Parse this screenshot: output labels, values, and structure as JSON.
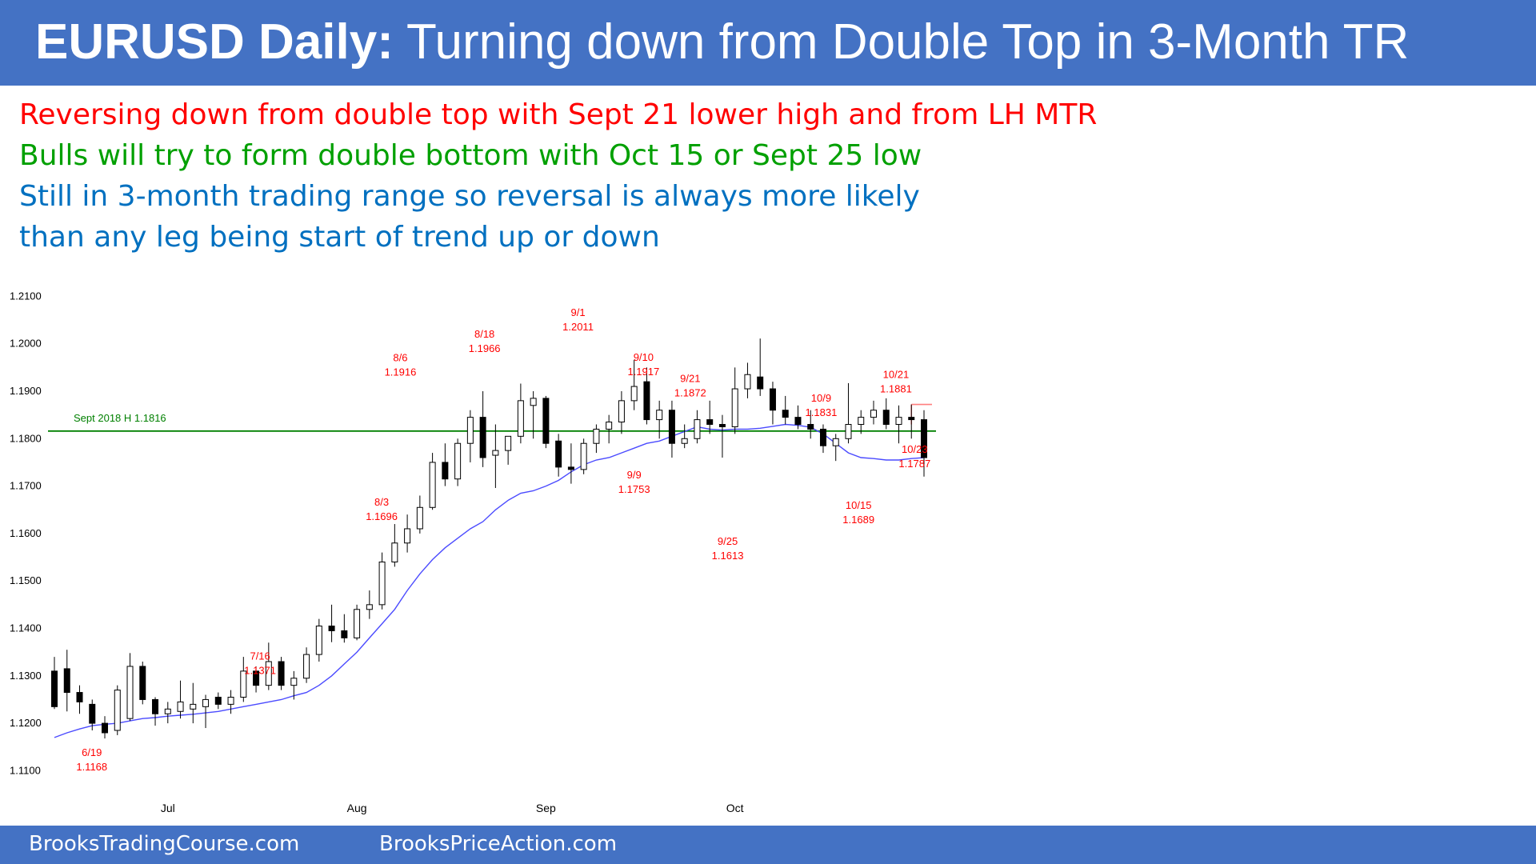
{
  "header": {
    "title_bold": "EURUSD Daily:",
    "title_rest": "Turning down from Double Top in 3-Month TR"
  },
  "notes": [
    {
      "text": "Reversing down from double top with Sept 21 lower high and from LH MTR",
      "color": "#ff0000"
    },
    {
      "text": "Bulls will try to form double bottom with Oct 15 or Sept 25 low",
      "color": "#00a000"
    },
    {
      "text": "Still in 3-month trading range so reversal is always more likely",
      "color": "#0070c0"
    },
    {
      "text": "than any leg being start of trend up or down",
      "color": "#0070c0"
    }
  ],
  "footer": {
    "left": "BrooksTradingCourse.com",
    "right": "BrooksPriceAction.com"
  },
  "colors": {
    "banner": "#4472c4",
    "annotation": "#ff0000",
    "support_line": "#008000",
    "resistance_line": "#ff7f7f",
    "moving_average": "#4b4bff",
    "candle": "#000000"
  },
  "chart_data": {
    "type": "candlestick",
    "instrument": "EURUSD",
    "timeframe": "Daily",
    "ylim": [
      1.105,
      1.215
    ],
    "y_ticks": [
      "1.2100",
      "1.2000",
      "1.1900",
      "1.1800",
      "1.1700",
      "1.1600",
      "1.1500",
      "1.1400",
      "1.1300",
      "1.1200",
      "1.1100"
    ],
    "x_ticks": [
      {
        "label": "Jul",
        "bar": 9
      },
      {
        "label": "Aug",
        "bar": 24
      },
      {
        "label": "Sep",
        "bar": 39
      },
      {
        "label": "Oct",
        "bar": 54
      }
    ],
    "candles": [
      {
        "o": 1.131,
        "h": 1.134,
        "l": 1.123,
        "c": 1.1235
      },
      {
        "o": 1.1315,
        "h": 1.1355,
        "l": 1.1225,
        "c": 1.1265
      },
      {
        "o": 1.1265,
        "h": 1.128,
        "l": 1.122,
        "c": 1.1245
      },
      {
        "o": 1.124,
        "h": 1.125,
        "l": 1.1185,
        "c": 1.12
      },
      {
        "o": 1.12,
        "h": 1.1215,
        "l": 1.1168,
        "c": 1.118
      },
      {
        "o": 1.1185,
        "h": 1.128,
        "l": 1.1175,
        "c": 1.127
      },
      {
        "o": 1.121,
        "h": 1.1348,
        "l": 1.1205,
        "c": 1.132
      },
      {
        "o": 1.132,
        "h": 1.133,
        "l": 1.124,
        "c": 1.125
      },
      {
        "o": 1.125,
        "h": 1.1255,
        "l": 1.1195,
        "c": 1.122
      },
      {
        "o": 1.122,
        "h": 1.1245,
        "l": 1.12,
        "c": 1.123
      },
      {
        "o": 1.1225,
        "h": 1.129,
        "l": 1.121,
        "c": 1.1245
      },
      {
        "o": 1.123,
        "h": 1.1285,
        "l": 1.12,
        "c": 1.124
      },
      {
        "o": 1.1235,
        "h": 1.126,
        "l": 1.119,
        "c": 1.125
      },
      {
        "o": 1.1255,
        "h": 1.1265,
        "l": 1.123,
        "c": 1.124
      },
      {
        "o": 1.124,
        "h": 1.127,
        "l": 1.122,
        "c": 1.1255
      },
      {
        "o": 1.1255,
        "h": 1.134,
        "l": 1.1245,
        "c": 1.131
      },
      {
        "o": 1.131,
        "h": 1.132,
        "l": 1.1265,
        "c": 1.128
      },
      {
        "o": 1.128,
        "h": 1.137,
        "l": 1.127,
        "c": 1.133
      },
      {
        "o": 1.133,
        "h": 1.134,
        "l": 1.127,
        "c": 1.128
      },
      {
        "o": 1.128,
        "h": 1.131,
        "l": 1.125,
        "c": 1.1295
      },
      {
        "o": 1.1295,
        "h": 1.136,
        "l": 1.1285,
        "c": 1.1345
      },
      {
        "o": 1.1345,
        "h": 1.142,
        "l": 1.133,
        "c": 1.1405
      },
      {
        "o": 1.1405,
        "h": 1.145,
        "l": 1.1371,
        "c": 1.1395
      },
      {
        "o": 1.1395,
        "h": 1.143,
        "l": 1.137,
        "c": 1.138
      },
      {
        "o": 1.138,
        "h": 1.145,
        "l": 1.1375,
        "c": 1.144
      },
      {
        "o": 1.144,
        "h": 1.148,
        "l": 1.142,
        "c": 1.145
      },
      {
        "o": 1.145,
        "h": 1.156,
        "l": 1.144,
        "c": 1.154
      },
      {
        "o": 1.154,
        "h": 1.162,
        "l": 1.153,
        "c": 1.158
      },
      {
        "o": 1.158,
        "h": 1.164,
        "l": 1.156,
        "c": 1.161
      },
      {
        "o": 1.161,
        "h": 1.168,
        "l": 1.16,
        "c": 1.1655
      },
      {
        "o": 1.1655,
        "h": 1.177,
        "l": 1.165,
        "c": 1.175
      },
      {
        "o": 1.175,
        "h": 1.179,
        "l": 1.17,
        "c": 1.1715
      },
      {
        "o": 1.1715,
        "h": 1.18,
        "l": 1.17,
        "c": 1.179
      },
      {
        "o": 1.179,
        "h": 1.186,
        "l": 1.175,
        "c": 1.1845
      },
      {
        "o": 1.1845,
        "h": 1.19,
        "l": 1.174,
        "c": 1.176
      },
      {
        "o": 1.1765,
        "h": 1.183,
        "l": 1.1696,
        "c": 1.1775
      },
      {
        "o": 1.1775,
        "h": 1.18,
        "l": 1.1745,
        "c": 1.1805
      },
      {
        "o": 1.1805,
        "h": 1.1916,
        "l": 1.179,
        "c": 1.188
      },
      {
        "o": 1.187,
        "h": 1.19,
        "l": 1.18,
        "c": 1.1885
      },
      {
        "o": 1.1885,
        "h": 1.189,
        "l": 1.178,
        "c": 1.179
      },
      {
        "o": 1.1795,
        "h": 1.181,
        "l": 1.172,
        "c": 1.174
      },
      {
        "o": 1.174,
        "h": 1.179,
        "l": 1.1705,
        "c": 1.1735
      },
      {
        "o": 1.1735,
        "h": 1.18,
        "l": 1.1725,
        "c": 1.179
      },
      {
        "o": 1.179,
        "h": 1.183,
        "l": 1.177,
        "c": 1.182
      },
      {
        "o": 1.182,
        "h": 1.185,
        "l": 1.179,
        "c": 1.1835
      },
      {
        "o": 1.1835,
        "h": 1.19,
        "l": 1.181,
        "c": 1.188
      },
      {
        "o": 1.188,
        "h": 1.1966,
        "l": 1.186,
        "c": 1.191
      },
      {
        "o": 1.192,
        "h": 1.195,
        "l": 1.183,
        "c": 1.184
      },
      {
        "o": 1.184,
        "h": 1.188,
        "l": 1.18,
        "c": 1.186
      },
      {
        "o": 1.186,
        "h": 1.188,
        "l": 1.176,
        "c": 1.179
      },
      {
        "o": 1.179,
        "h": 1.183,
        "l": 1.178,
        "c": 1.18
      },
      {
        "o": 1.18,
        "h": 1.186,
        "l": 1.179,
        "c": 1.184
      },
      {
        "o": 1.184,
        "h": 1.188,
        "l": 1.181,
        "c": 1.183
      },
      {
        "o": 1.183,
        "h": 1.185,
        "l": 1.176,
        "c": 1.1825
      },
      {
        "o": 1.1825,
        "h": 1.195,
        "l": 1.181,
        "c": 1.1905
      },
      {
        "o": 1.1905,
        "h": 1.196,
        "l": 1.1885,
        "c": 1.1935
      },
      {
        "o": 1.193,
        "h": 1.2011,
        "l": 1.189,
        "c": 1.1905
      },
      {
        "o": 1.1905,
        "h": 1.192,
        "l": 1.183,
        "c": 1.186
      },
      {
        "o": 1.186,
        "h": 1.189,
        "l": 1.183,
        "c": 1.1845
      },
      {
        "o": 1.1845,
        "h": 1.187,
        "l": 1.182,
        "c": 1.183
      },
      {
        "o": 1.183,
        "h": 1.186,
        "l": 1.18,
        "c": 1.182
      },
      {
        "o": 1.182,
        "h": 1.183,
        "l": 1.177,
        "c": 1.1785
      },
      {
        "o": 1.1785,
        "h": 1.181,
        "l": 1.1753,
        "c": 1.18
      },
      {
        "o": 1.18,
        "h": 1.1917,
        "l": 1.179,
        "c": 1.183
      },
      {
        "o": 1.183,
        "h": 1.186,
        "l": 1.181,
        "c": 1.1845
      },
      {
        "o": 1.1845,
        "h": 1.188,
        "l": 1.183,
        "c": 1.186
      },
      {
        "o": 1.186,
        "h": 1.1885,
        "l": 1.182,
        "c": 1.183
      },
      {
        "o": 1.183,
        "h": 1.187,
        "l": 1.179,
        "c": 1.1845
      },
      {
        "o": 1.1845,
        "h": 1.1872,
        "l": 1.18,
        "c": 1.184
      },
      {
        "o": 1.184,
        "h": 1.186,
        "l": 1.172,
        "c": 1.176
      }
    ],
    "moving_average": [
      1.117,
      1.118,
      1.1188,
      1.1195,
      1.1198,
      1.12,
      1.1205,
      1.121,
      1.1212,
      1.1215,
      1.1217,
      1.1219,
      1.1222,
      1.1225,
      1.123,
      1.1235,
      1.124,
      1.1245,
      1.125,
      1.1258,
      1.1265,
      1.128,
      1.13,
      1.1325,
      1.135,
      1.138,
      1.141,
      1.144,
      1.148,
      1.1515,
      1.1545,
      1.157,
      1.159,
      1.161,
      1.1625,
      1.165,
      1.167,
      1.1685,
      1.169,
      1.17,
      1.1712,
      1.173,
      1.1745,
      1.1755,
      1.176,
      1.177,
      1.178,
      1.179,
      1.1795,
      1.1805,
      1.1815,
      1.1825,
      1.182,
      1.1818,
      1.182,
      1.182,
      1.1822,
      1.1826,
      1.183,
      1.1828,
      1.1824,
      1.181,
      1.179,
      1.177,
      1.176,
      1.1758,
      1.1755,
      1.1755,
      1.1758,
      1.176
    ],
    "support_line": {
      "label": "Sept 2018 H 1.1816",
      "value": 1.1816
    },
    "resistance_line": {
      "value": 1.1872
    },
    "annotations": [
      {
        "date": "6/19",
        "price": "1.1168",
        "bar": 4,
        "value": 1.1168,
        "pos": "below"
      },
      {
        "date": "7/16",
        "price": "1.1371",
        "bar": 22,
        "value": 1.1371,
        "pos": "below"
      },
      {
        "date": "8/3",
        "price": "1.1696",
        "bar": 35,
        "value": 1.1696,
        "pos": "below"
      },
      {
        "date": "8/6",
        "price": "1.1916",
        "bar": 37,
        "value": 1.1916,
        "pos": "above"
      },
      {
        "date": "8/18",
        "price": "1.1966",
        "bar": 46,
        "value": 1.1966,
        "pos": "above"
      },
      {
        "date": "9/1",
        "price": "1.2011",
        "bar": 56,
        "value": 1.2011,
        "pos": "above"
      },
      {
        "date": "9/9",
        "price": "1.1753",
        "bar": 62,
        "value": 1.1753,
        "pos": "below"
      },
      {
        "date": "9/10",
        "price": "1.1917",
        "bar": 63,
        "value": 1.1917,
        "pos": "above"
      },
      {
        "date": "9/21",
        "price": "1.1872",
        "bar": 68,
        "value": 1.1872,
        "pos": "above"
      },
      {
        "date": "9/25",
        "price": "1.1613",
        "bar": 72,
        "value": 1.1613,
        "pos": "below"
      },
      {
        "date": "10/9",
        "price": "1.1831",
        "bar": 82,
        "value": 1.1831,
        "pos": "above"
      },
      {
        "date": "10/15",
        "price": "1.1689",
        "bar": 86,
        "value": 1.1689,
        "pos": "below"
      },
      {
        "date": "10/21",
        "price": "1.1881",
        "bar": 90,
        "value": 1.1881,
        "pos": "above"
      },
      {
        "date": "10/23",
        "price": "1.1787",
        "bar": 92,
        "value": 1.1787,
        "pos": "right"
      }
    ]
  }
}
